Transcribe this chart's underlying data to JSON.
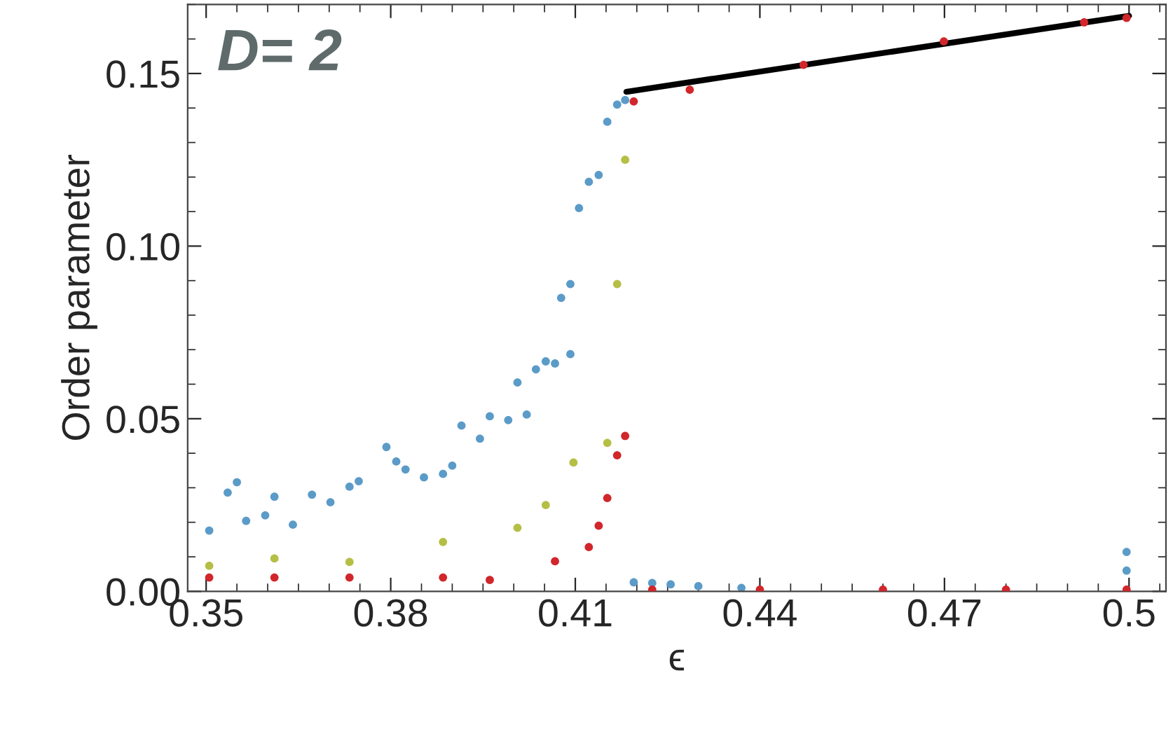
{
  "chart_data": {
    "type": "scatter",
    "xlabel": "ϵ",
    "ylabel": "Order parameter",
    "annotations": [
      "D= 2"
    ],
    "xlim": [
      0.347,
      0.506
    ],
    "xticks": [
      0.35,
      0.38,
      0.41,
      0.44,
      0.47,
      0.5
    ],
    "ylim": [
      0,
      0.17
    ],
    "yticks": [
      {
        "value": 0,
        "label": "0.00"
      },
      {
        "value": 0.05,
        "label": "0.05"
      },
      {
        "value": 0.1,
        "label": "0.10"
      },
      {
        "value": 0.15,
        "label": "0.15"
      }
    ],
    "grid": false,
    "marker": "circle",
    "series": [
      {
        "color": "#5b9bc8",
        "x": [
          0.3505,
          0.3535,
          0.355,
          0.3565,
          0.3596,
          0.3611,
          0.3641,
          0.3672,
          0.3702,
          0.3733,
          0.3748,
          0.3793,
          0.3809,
          0.3824,
          0.3854,
          0.3885,
          0.39,
          0.3915,
          0.3945,
          0.3961,
          0.3991,
          0.4006,
          0.4021,
          0.4036,
          0.4052,
          0.4067,
          0.4077,
          0.4092,
          0.4092,
          0.4106,
          0.4122,
          0.4138,
          0.4152,
          0.4168,
          0.4181,
          0.4195,
          0.4225,
          0.4255,
          0.43,
          0.437,
          0.4996,
          0.4996
        ],
        "values": [
          0.0176,
          0.0286,
          0.0316,
          0.0204,
          0.022,
          0.0274,
          0.0193,
          0.028,
          0.0258,
          0.0303,
          0.0319,
          0.0418,
          0.0376,
          0.0353,
          0.033,
          0.034,
          0.0364,
          0.048,
          0.0442,
          0.0507,
          0.0496,
          0.0605,
          0.0512,
          0.0643,
          0.0666,
          0.066,
          0.085,
          0.0687,
          0.089,
          0.111,
          0.1186,
          0.1206,
          0.136,
          0.141,
          0.1423,
          0.0026,
          0.0024,
          0.002,
          0.0015,
          0.001,
          0.0114,
          0.006
        ]
      },
      {
        "color": "#b5bf45",
        "x": [
          0.3505,
          0.3611,
          0.3733,
          0.3885,
          0.4006,
          0.4052,
          0.4097,
          0.4152,
          0.4168,
          0.4181
        ],
        "values": [
          0.0074,
          0.0095,
          0.0085,
          0.0143,
          0.0184,
          0.025,
          0.0373,
          0.043,
          0.089,
          0.125
        ]
      },
      {
        "color": "#d1262b",
        "x": [
          0.3505,
          0.3611,
          0.3733,
          0.3885,
          0.3961,
          0.4067,
          0.4122,
          0.4138,
          0.4152,
          0.4168,
          0.4181,
          0.4195,
          0.4286,
          0.4471,
          0.4699,
          0.4927,
          0.4996,
          0.4225,
          0.44,
          0.46,
          0.48,
          0.4996
        ],
        "values": [
          0.004,
          0.004,
          0.004,
          0.004,
          0.0033,
          0.0087,
          0.0128,
          0.019,
          0.027,
          0.0394,
          0.045,
          0.1419,
          0.1453,
          0.1525,
          0.1593,
          0.1648,
          0.1661,
          0.0005,
          0.0005,
          0.0005,
          0.0005,
          0.0005
        ]
      },
      {
        "type": "line",
        "marker": "none",
        "color": "#000000",
        "x": [
          0.4183,
          0.5
        ],
        "values": [
          0.1447,
          0.1667
        ]
      }
    ]
  }
}
